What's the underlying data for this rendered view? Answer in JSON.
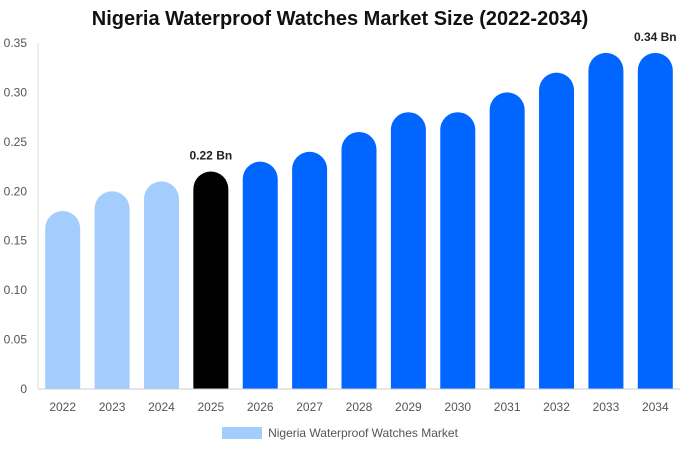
{
  "chart_data": {
    "type": "bar",
    "title": "Nigeria Waterproof Watches Market Size (2022-2034)",
    "categories": [
      "2022",
      "2023",
      "2024",
      "2025",
      "2026",
      "2027",
      "2028",
      "2029",
      "2030",
      "2031",
      "2032",
      "2033",
      "2034"
    ],
    "series": [
      {
        "name": "Nigeria Waterproof Watches Market",
        "values": [
          0.18,
          0.2,
          0.21,
          0.22,
          0.23,
          0.24,
          0.26,
          0.28,
          0.28,
          0.3,
          0.32,
          0.34,
          0.34
        ]
      }
    ],
    "ylim": [
      0,
      0.35
    ],
    "yticks": [
      "0",
      "0.05",
      "0.10",
      "0.15",
      "0.20",
      "0.25",
      "0.30",
      "0.35"
    ],
    "ytick_values": [
      0,
      0.05,
      0.1,
      0.15,
      0.2,
      0.25,
      0.3,
      0.35
    ],
    "data_labels": [
      {
        "category": "2025",
        "text": "0.22 Bn"
      },
      {
        "category": "2034",
        "text": "0.34 Bn"
      }
    ],
    "colors": {
      "historical": "#a3cdfd",
      "current": "#000000",
      "forecast": "#0066ff"
    },
    "bar_color_groups": [
      "historical",
      "historical",
      "historical",
      "current",
      "forecast",
      "forecast",
      "forecast",
      "forecast",
      "forecast",
      "forecast",
      "forecast",
      "forecast",
      "forecast"
    ],
    "grid": false,
    "legend_position": "bottom"
  }
}
